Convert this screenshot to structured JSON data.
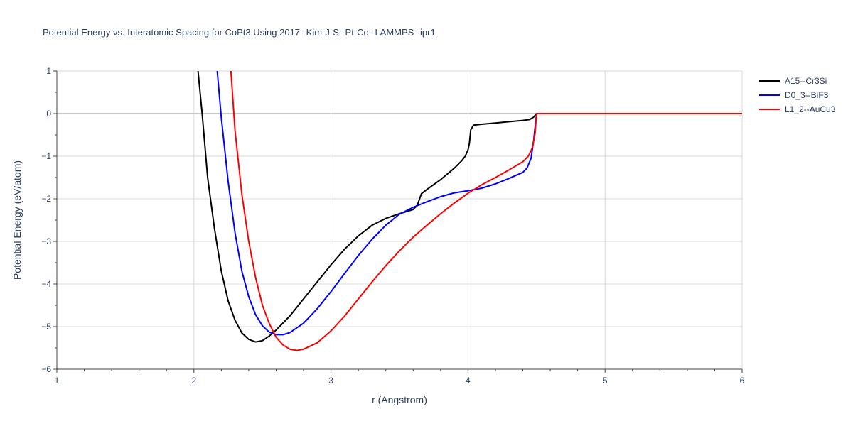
{
  "chart_data": {
    "type": "line",
    "title": "Potential Energy vs. Interatomic Spacing for CoPt3 Using 2017--Kim-J-S--Pt-Co--LAMMPS--ipr1",
    "xlabel": "r (Angstrom)",
    "ylabel": "Potential Energy (eV/atom)",
    "xlim": [
      1,
      6
    ],
    "ylim": [
      -6,
      1
    ],
    "xticks": [
      1,
      2,
      3,
      4,
      5,
      6
    ],
    "yticks": [
      1,
      0,
      -1,
      -2,
      -3,
      -4,
      -5,
      -6
    ],
    "grid": true,
    "legend_position": "top-right",
    "series": [
      {
        "name": "A15--Cr3Si",
        "color": "#000000",
        "points": [
          [
            2.03,
            1.0
          ],
          [
            2.06,
            0.0
          ],
          [
            2.1,
            -1.5
          ],
          [
            2.15,
            -2.7
          ],
          [
            2.2,
            -3.7
          ],
          [
            2.25,
            -4.4
          ],
          [
            2.3,
            -4.85
          ],
          [
            2.35,
            -5.15
          ],
          [
            2.4,
            -5.3
          ],
          [
            2.45,
            -5.36
          ],
          [
            2.5,
            -5.33
          ],
          [
            2.55,
            -5.22
          ],
          [
            2.6,
            -5.08
          ],
          [
            2.7,
            -4.75
          ],
          [
            2.8,
            -4.35
          ],
          [
            2.9,
            -3.95
          ],
          [
            3.0,
            -3.55
          ],
          [
            3.1,
            -3.18
          ],
          [
            3.2,
            -2.87
          ],
          [
            3.3,
            -2.62
          ],
          [
            3.4,
            -2.46
          ],
          [
            3.5,
            -2.35
          ],
          [
            3.6,
            -2.25
          ],
          [
            3.63,
            -2.15
          ],
          [
            3.66,
            -1.88
          ],
          [
            3.7,
            -1.78
          ],
          [
            3.8,
            -1.55
          ],
          [
            3.9,
            -1.28
          ],
          [
            3.95,
            -1.12
          ],
          [
            3.98,
            -1.0
          ],
          [
            4.0,
            -0.85
          ],
          [
            4.01,
            -0.7
          ],
          [
            4.02,
            -0.38
          ],
          [
            4.04,
            -0.27
          ],
          [
            4.1,
            -0.25
          ],
          [
            4.2,
            -0.22
          ],
          [
            4.3,
            -0.19
          ],
          [
            4.4,
            -0.16
          ],
          [
            4.45,
            -0.14
          ],
          [
            4.48,
            -0.08
          ],
          [
            4.5,
            0.0
          ],
          [
            6.0,
            0.0
          ]
        ]
      },
      {
        "name": "D0_3--BiF3",
        "color": "#0000ff",
        "points": [
          [
            2.17,
            1.0
          ],
          [
            2.2,
            -0.1
          ],
          [
            2.25,
            -1.6
          ],
          [
            2.3,
            -2.8
          ],
          [
            2.35,
            -3.7
          ],
          [
            2.4,
            -4.3
          ],
          [
            2.45,
            -4.72
          ],
          [
            2.5,
            -4.98
          ],
          [
            2.55,
            -5.13
          ],
          [
            2.6,
            -5.19
          ],
          [
            2.65,
            -5.19
          ],
          [
            2.7,
            -5.14
          ],
          [
            2.8,
            -4.92
          ],
          [
            2.9,
            -4.58
          ],
          [
            3.0,
            -4.18
          ],
          [
            3.1,
            -3.75
          ],
          [
            3.2,
            -3.33
          ],
          [
            3.3,
            -2.95
          ],
          [
            3.4,
            -2.62
          ],
          [
            3.5,
            -2.36
          ],
          [
            3.6,
            -2.2
          ],
          [
            3.7,
            -2.07
          ],
          [
            3.8,
            -1.95
          ],
          [
            3.9,
            -1.86
          ],
          [
            4.0,
            -1.81
          ],
          [
            4.1,
            -1.75
          ],
          [
            4.2,
            -1.65
          ],
          [
            4.3,
            -1.52
          ],
          [
            4.4,
            -1.38
          ],
          [
            4.43,
            -1.28
          ],
          [
            4.46,
            -1.05
          ],
          [
            4.48,
            -0.6
          ],
          [
            4.5,
            0.0
          ],
          [
            6.0,
            0.0
          ]
        ]
      },
      {
        "name": "L1_2--AuCu3",
        "color": "#ff0000",
        "points": [
          [
            2.27,
            1.0
          ],
          [
            2.3,
            -0.4
          ],
          [
            2.35,
            -1.9
          ],
          [
            2.4,
            -3.0
          ],
          [
            2.45,
            -3.85
          ],
          [
            2.5,
            -4.5
          ],
          [
            2.55,
            -4.93
          ],
          [
            2.6,
            -5.25
          ],
          [
            2.65,
            -5.43
          ],
          [
            2.7,
            -5.53
          ],
          [
            2.75,
            -5.56
          ],
          [
            2.8,
            -5.53
          ],
          [
            2.9,
            -5.38
          ],
          [
            3.0,
            -5.1
          ],
          [
            3.1,
            -4.75
          ],
          [
            3.2,
            -4.35
          ],
          [
            3.3,
            -3.95
          ],
          [
            3.4,
            -3.57
          ],
          [
            3.5,
            -3.22
          ],
          [
            3.6,
            -2.9
          ],
          [
            3.7,
            -2.62
          ],
          [
            3.8,
            -2.35
          ],
          [
            3.9,
            -2.1
          ],
          [
            4.0,
            -1.87
          ],
          [
            4.1,
            -1.67
          ],
          [
            4.2,
            -1.5
          ],
          [
            4.3,
            -1.32
          ],
          [
            4.4,
            -1.13
          ],
          [
            4.44,
            -1.0
          ],
          [
            4.47,
            -0.8
          ],
          [
            4.49,
            -0.45
          ],
          [
            4.5,
            0.0
          ],
          [
            6.0,
            0.0
          ]
        ]
      }
    ]
  }
}
